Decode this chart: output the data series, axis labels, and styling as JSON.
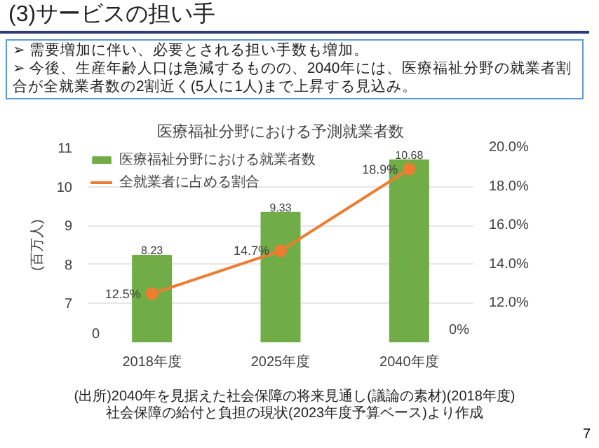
{
  "chart_data": {
    "type": "bar",
    "title": "医療福祉分野における予測就業者数",
    "subtitle": "(3)サービスの担い手",
    "annotations": [
      "➢ 需要増加に伴い、必要とされる担い手数も増加。",
      "➢ 今後、生産年齢人口は急減するものの、2040年には、医療福祉分野の就業者割合が全就業者数の2割近く(5人に1人)まで上昇する見込み。",
      "(出所)2040年を見据えた社会保障の将来見通し(議論の素材)(2018年度)",
      "社会保障の給付と負担の現状(2023年度予算ベース)より作成",
      "7",
      "0",
      "0%"
    ],
    "ylabel": "(百万人)",
    "categories": [
      "2018年度",
      "2025年度",
      "2040年度"
    ],
    "series": [
      {
        "name": "医療福祉分野における就業者数",
        "color": "#70ad47",
        "values": [
          8.23,
          9.33,
          10.68
        ],
        "value_labels": [
          "8.23",
          "9.33",
          "10.68"
        ]
      },
      {
        "name": "全就業者に占める割合",
        "type": "line",
        "axis": "y2",
        "color": "#ed7d31",
        "marker": "circle",
        "values": [
          12.5,
          14.7,
          18.9
        ],
        "value_labels": [
          "12.5%",
          "14.7%",
          "18.9%"
        ]
      }
    ],
    "ylim": [
      6,
      11
    ],
    "yticks": [
      7,
      8,
      9,
      10,
      11
    ],
    "y2lim": [
      10,
      20
    ],
    "y2ticks": [
      {
        "value": 12,
        "label": "12.0%"
      },
      {
        "value": 14,
        "label": "14.0%"
      },
      {
        "value": 16,
        "label": "16.0%"
      },
      {
        "value": 18,
        "label": "18.0%"
      },
      {
        "value": 20,
        "label": "20.0%"
      }
    ],
    "grid": "y",
    "legend": "top left"
  }
}
